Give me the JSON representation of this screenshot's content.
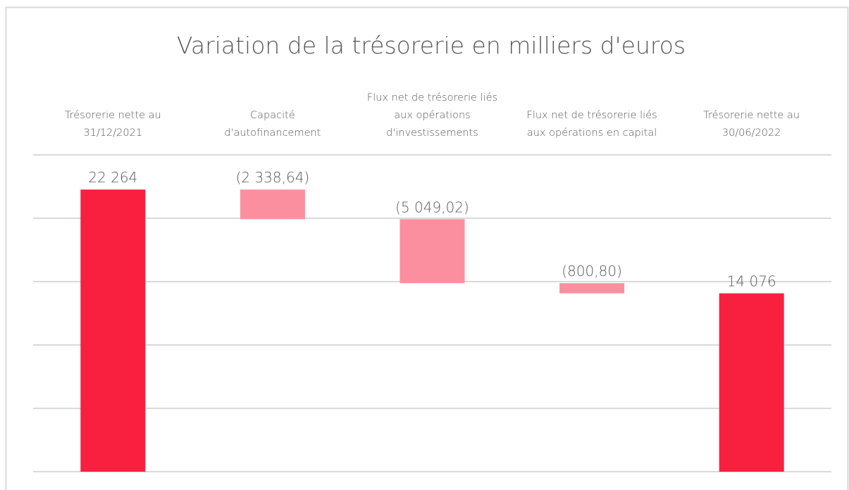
{
  "chart_data": {
    "type": "waterfall",
    "title": "Variation de la trésorerie en milliers d'euros",
    "categories": [
      "Trésorerie nette au 31/12/2021",
      "Capacité d'autofinancement",
      "Flux net de trésorerie liés aux opérations d'investissements",
      "Flux net de trésorerie liés aux opérations en capital",
      "Trésorerie nette au 30/06/2022"
    ],
    "values": [
      22264,
      -2338.64,
      -5049.02,
      -800.8,
      14076
    ],
    "value_labels": [
      "22 264",
      "(2 338,64)",
      "(5 049,02)",
      "(800,80)",
      "14 076"
    ],
    "measures": [
      "absolute",
      "relative",
      "relative",
      "relative",
      "absolute"
    ],
    "colors": [
      "#f9203f",
      "#fb8fa0",
      "#fb8fa0",
      "#fb8fa0",
      "#f9203f"
    ],
    "ylim": [
      0,
      25000
    ],
    "yticks": [
      0,
      5000,
      10000,
      15000,
      20000,
      25000
    ],
    "grid": true
  }
}
